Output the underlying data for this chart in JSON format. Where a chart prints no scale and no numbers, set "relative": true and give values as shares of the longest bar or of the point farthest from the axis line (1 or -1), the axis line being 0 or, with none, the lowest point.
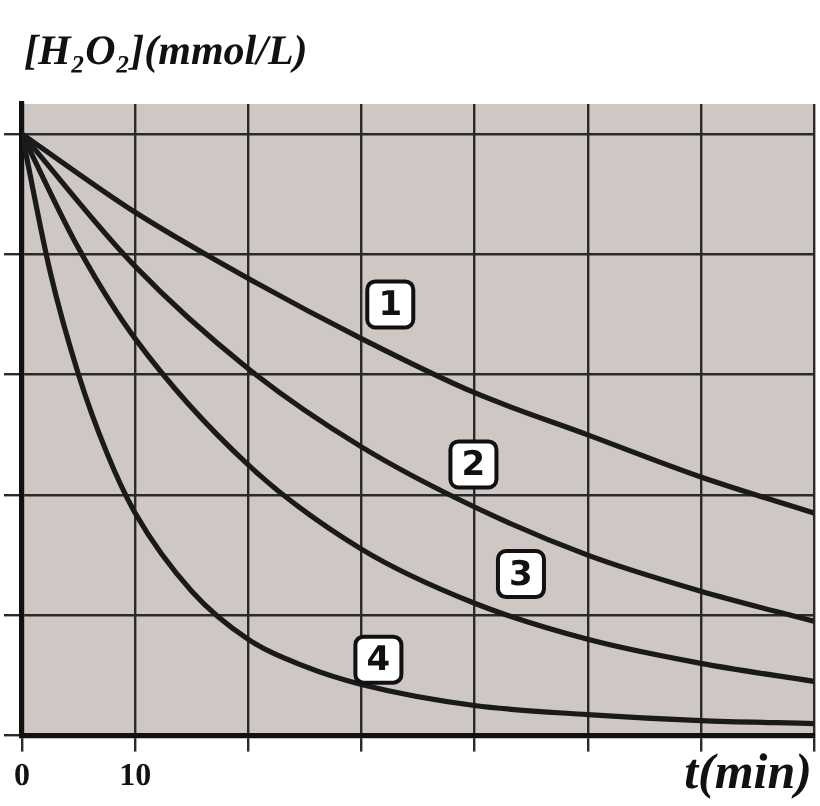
{
  "chart_data": {
    "type": "line",
    "xlabel": "t(min)",
    "ylabel": "[H₂O₂](mmol/L)",
    "relative": true,
    "xlim": [
      0,
      70
    ],
    "xticks": [
      0,
      10,
      {
        "value": 20,
        "label": null
      },
      {
        "value": 30,
        "label": null
      },
      {
        "value": 40,
        "label": null
      },
      {
        "value": 50,
        "label": null
      },
      {
        "value": 60,
        "label": null
      },
      {
        "value": 70,
        "label": null
      }
    ],
    "grid": true,
    "legend": false,
    "marker": "none",
    "line_style": "solid",
    "series": [
      {
        "name": "1",
        "color": "#1a1a1a",
        "x": [
          0,
          10,
          20,
          30,
          40,
          50,
          60,
          70
        ],
        "values": [
          1,
          0.87,
          0.76,
          0.66,
          0.57,
          0.5,
          0.43,
          0.37
        ]
      },
      {
        "name": "2",
        "color": "#1a1a1a",
        "x": [
          0,
          10,
          20,
          30,
          40,
          50,
          60,
          70
        ],
        "values": [
          1,
          0.78,
          0.61,
          0.48,
          0.38,
          0.3,
          0.24,
          0.19
        ]
      },
      {
        "name": "3",
        "color": "#1a1a1a",
        "x": [
          0,
          5,
          10,
          20,
          30,
          40,
          50,
          60,
          70
        ],
        "values": [
          1,
          0.81,
          0.66,
          0.45,
          0.31,
          0.22,
          0.16,
          0.12,
          0.09
        ]
      },
      {
        "name": "4",
        "color": "#1a1a1a",
        "x": [
          0,
          2.5,
          5,
          7.5,
          10,
          15,
          20,
          25,
          30,
          40,
          50,
          60,
          70
        ],
        "values": [
          1,
          0.77,
          0.6,
          0.47,
          0.37,
          0.24,
          0.16,
          0.115,
          0.085,
          0.05,
          0.035,
          0.025,
          0.02
        ]
      }
    ]
  }
}
